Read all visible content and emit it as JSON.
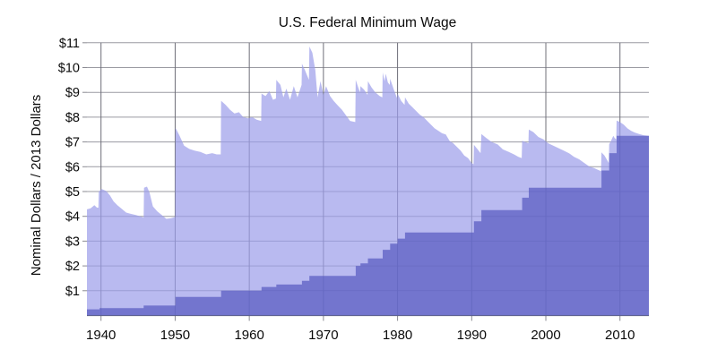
{
  "background": "#ffffff",
  "chart_data": {
    "type": "area",
    "title": "U.S. Federal Minimum Wage",
    "xlabel": "",
    "ylabel": "Nominal Dollars / 2013 Dollars",
    "xlim": [
      1938.1,
      2013.9
    ],
    "ylim": [
      0,
      11
    ],
    "grid": true,
    "legend": "none",
    "colors": {
      "grid_horizontal": "#9a9aa2",
      "grid_vertical": "#6e6e78",
      "axis": "#555a63",
      "tick": "#8a8a92",
      "area_2013_apparent": "#b9baf0",
      "area_nominal_apparent": "#7477ce"
    },
    "x_ticks": [
      {
        "value": 1940,
        "label": "1940"
      },
      {
        "value": 1950,
        "label": "1950"
      },
      {
        "value": 1960,
        "label": "1960"
      },
      {
        "value": 1970,
        "label": "1970"
      },
      {
        "value": 1980,
        "label": "1980"
      },
      {
        "value": 1990,
        "label": "1990"
      },
      {
        "value": 2000,
        "label": "2000"
      },
      {
        "value": 2010,
        "label": "2010"
      }
    ],
    "y_ticks": [
      {
        "value": 1,
        "label": "$1"
      },
      {
        "value": 2,
        "label": "$2"
      },
      {
        "value": 3,
        "label": "$3"
      },
      {
        "value": 4,
        "label": "$4"
      },
      {
        "value": 5,
        "label": "$5"
      },
      {
        "value": 6,
        "label": "$6"
      },
      {
        "value": 7,
        "label": "$7"
      },
      {
        "value": 8,
        "label": "$8"
      },
      {
        "value": 9,
        "label": "$9"
      },
      {
        "value": 10,
        "label": "$10"
      },
      {
        "value": 11,
        "label": "$11"
      }
    ],
    "series": [
      {
        "name": "2013 Dollars",
        "style": "area",
        "color": "#9b9cea",
        "opacity": 0.7,
        "points": [
          [
            1938.1,
            4.28
          ],
          [
            1938.6,
            4.32
          ],
          [
            1939.1,
            4.45
          ],
          [
            1939.45,
            4.35
          ],
          [
            1939.65,
            4.35
          ],
          [
            1939.7,
            5.0
          ],
          [
            1940.1,
            5.1
          ],
          [
            1940.7,
            5.02
          ],
          [
            1941.2,
            4.85
          ],
          [
            1941.7,
            4.6
          ],
          [
            1942.2,
            4.45
          ],
          [
            1942.8,
            4.3
          ],
          [
            1943.4,
            4.15
          ],
          [
            1944.0,
            4.1
          ],
          [
            1944.7,
            4.05
          ],
          [
            1945.3,
            4.0
          ],
          [
            1945.75,
            3.95
          ],
          [
            1945.8,
            5.15
          ],
          [
            1946.2,
            5.2
          ],
          [
            1946.55,
            4.95
          ],
          [
            1947.0,
            4.4
          ],
          [
            1947.6,
            4.2
          ],
          [
            1948.2,
            4.05
          ],
          [
            1948.8,
            3.9
          ],
          [
            1949.4,
            3.92
          ],
          [
            1950.0,
            3.97
          ],
          [
            1950.05,
            7.57
          ],
          [
            1950.6,
            7.25
          ],
          [
            1951.2,
            6.85
          ],
          [
            1951.9,
            6.72
          ],
          [
            1952.6,
            6.65
          ],
          [
            1953.4,
            6.6
          ],
          [
            1954.2,
            6.5
          ],
          [
            1955.0,
            6.55
          ],
          [
            1955.6,
            6.5
          ],
          [
            1956.15,
            6.5
          ],
          [
            1956.2,
            8.66
          ],
          [
            1956.8,
            8.5
          ],
          [
            1957.4,
            8.3
          ],
          [
            1958.0,
            8.15
          ],
          [
            1958.6,
            8.2
          ],
          [
            1959.2,
            8.0
          ],
          [
            1959.8,
            7.95
          ],
          [
            1960.4,
            8.0
          ],
          [
            1961.0,
            7.9
          ],
          [
            1961.6,
            7.85
          ],
          [
            1961.65,
            8.95
          ],
          [
            1962.2,
            8.85
          ],
          [
            1962.7,
            9.05
          ],
          [
            1963.2,
            8.7
          ],
          [
            1963.6,
            8.75
          ],
          [
            1963.65,
            9.5
          ],
          [
            1964.2,
            9.3
          ],
          [
            1964.6,
            8.8
          ],
          [
            1965.0,
            9.15
          ],
          [
            1965.5,
            8.7
          ],
          [
            1966.0,
            9.25
          ],
          [
            1966.5,
            8.8
          ],
          [
            1967.05,
            9.3
          ],
          [
            1967.1,
            10.15
          ],
          [
            1967.5,
            9.9
          ],
          [
            1968.05,
            9.5
          ],
          [
            1968.1,
            10.85
          ],
          [
            1968.5,
            10.6
          ],
          [
            1968.9,
            9.9
          ],
          [
            1969.2,
            8.8
          ],
          [
            1969.6,
            9.45
          ],
          [
            1970.0,
            8.9
          ],
          [
            1970.35,
            9.25
          ],
          [
            1970.9,
            8.85
          ],
          [
            1971.4,
            8.65
          ],
          [
            1972.0,
            8.45
          ],
          [
            1972.5,
            8.3
          ],
          [
            1973.1,
            8.05
          ],
          [
            1973.6,
            7.85
          ],
          [
            1974.3,
            7.8
          ],
          [
            1974.35,
            9.5
          ],
          [
            1974.7,
            9.2
          ],
          [
            1974.95,
            9.0
          ],
          [
            1975.0,
            9.25
          ],
          [
            1975.5,
            9.1
          ],
          [
            1975.95,
            8.9
          ],
          [
            1976.0,
            9.45
          ],
          [
            1976.5,
            9.2
          ],
          [
            1977.0,
            9.0
          ],
          [
            1977.6,
            8.85
          ],
          [
            1977.95,
            8.8
          ],
          [
            1978.0,
            9.8
          ],
          [
            1978.25,
            9.45
          ],
          [
            1978.4,
            9.75
          ],
          [
            1978.7,
            9.4
          ],
          [
            1978.95,
            9.3
          ],
          [
            1979.0,
            9.55
          ],
          [
            1979.5,
            9.1
          ],
          [
            1979.95,
            8.75
          ],
          [
            1980.0,
            8.95
          ],
          [
            1980.5,
            8.65
          ],
          [
            1980.95,
            8.5
          ],
          [
            1981.0,
            8.8
          ],
          [
            1981.5,
            8.55
          ],
          [
            1982.0,
            8.4
          ],
          [
            1982.5,
            8.25
          ],
          [
            1983.0,
            8.1
          ],
          [
            1983.5,
            8.0
          ],
          [
            1984.0,
            7.85
          ],
          [
            1984.5,
            7.7
          ],
          [
            1985.0,
            7.55
          ],
          [
            1985.5,
            7.45
          ],
          [
            1986.0,
            7.35
          ],
          [
            1986.5,
            7.3
          ],
          [
            1987.0,
            7.05
          ],
          [
            1987.5,
            6.95
          ],
          [
            1988.0,
            6.8
          ],
          [
            1988.5,
            6.65
          ],
          [
            1989.0,
            6.45
          ],
          [
            1989.5,
            6.35
          ],
          [
            1990.0,
            6.15
          ],
          [
            1990.25,
            6.1
          ],
          [
            1990.3,
            6.88
          ],
          [
            1990.8,
            6.7
          ],
          [
            1991.2,
            6.55
          ],
          [
            1991.3,
            7.32
          ],
          [
            1992.0,
            7.15
          ],
          [
            1992.7,
            7.0
          ],
          [
            1993.5,
            6.9
          ],
          [
            1994.2,
            6.7
          ],
          [
            1995.0,
            6.6
          ],
          [
            1995.7,
            6.5
          ],
          [
            1996.3,
            6.4
          ],
          [
            1996.75,
            6.35
          ],
          [
            1996.8,
            7.05
          ],
          [
            1997.2,
            7.0
          ],
          [
            1997.65,
            6.95
          ],
          [
            1997.7,
            7.5
          ],
          [
            1998.3,
            7.4
          ],
          [
            1999.0,
            7.2
          ],
          [
            1999.7,
            7.1
          ],
          [
            2000.3,
            6.95
          ],
          [
            2001.0,
            6.85
          ],
          [
            2001.7,
            6.75
          ],
          [
            2002.4,
            6.65
          ],
          [
            2003.1,
            6.55
          ],
          [
            2003.8,
            6.4
          ],
          [
            2004.5,
            6.3
          ],
          [
            2005.2,
            6.15
          ],
          [
            2005.9,
            6.0
          ],
          [
            2006.5,
            5.95
          ],
          [
            2007.0,
            5.88
          ],
          [
            2007.45,
            5.82
          ],
          [
            2007.5,
            6.58
          ],
          [
            2007.9,
            6.45
          ],
          [
            2008.2,
            6.3
          ],
          [
            2008.5,
            6.15
          ],
          [
            2008.55,
            6.9
          ],
          [
            2008.8,
            7.05
          ],
          [
            2009.1,
            7.25
          ],
          [
            2009.3,
            7.15
          ],
          [
            2009.5,
            7.1
          ],
          [
            2009.55,
            7.86
          ],
          [
            2010.0,
            7.8
          ],
          [
            2010.5,
            7.7
          ],
          [
            2011.0,
            7.55
          ],
          [
            2011.5,
            7.45
          ],
          [
            2012.0,
            7.38
          ],
          [
            2012.6,
            7.32
          ],
          [
            2013.2,
            7.27
          ],
          [
            2013.9,
            7.25
          ]
        ]
      },
      {
        "name": "Nominal Dollars",
        "style": "step-area",
        "color": "#5659bf",
        "opacity": 0.7,
        "points": [
          [
            1938.1,
            0.25
          ],
          [
            1939.8,
            0.3
          ],
          [
            1945.75,
            0.4
          ],
          [
            1950.05,
            0.75
          ],
          [
            1956.2,
            1.0
          ],
          [
            1961.65,
            1.15
          ],
          [
            1963.65,
            1.25
          ],
          [
            1967.1,
            1.4
          ],
          [
            1968.1,
            1.6
          ],
          [
            1974.35,
            2.0
          ],
          [
            1975.0,
            2.1
          ],
          [
            1976.0,
            2.3
          ],
          [
            1978.0,
            2.65
          ],
          [
            1979.0,
            2.9
          ],
          [
            1980.0,
            3.1
          ],
          [
            1981.0,
            3.35
          ],
          [
            1990.3,
            3.8
          ],
          [
            1991.3,
            4.25
          ],
          [
            1996.8,
            4.75
          ],
          [
            1997.7,
            5.15
          ],
          [
            2007.5,
            5.85
          ],
          [
            2008.55,
            6.55
          ],
          [
            2009.55,
            7.25
          ]
        ]
      }
    ]
  }
}
